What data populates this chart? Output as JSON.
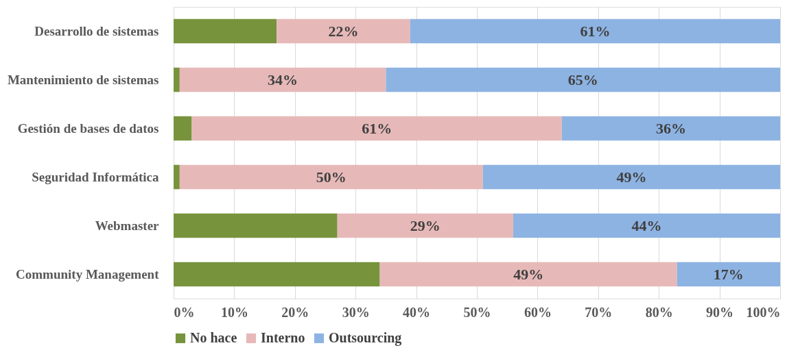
{
  "chart_data": {
    "type": "bar",
    "orientation": "horizontal",
    "stacked": true,
    "categories": [
      "Desarrollo de sistemas",
      "Mantenimiento de sistemas",
      "Gestión de bases de datos",
      "Seguridad Informática",
      "Webmaster",
      "Community Management"
    ],
    "series": [
      {
        "name": "No hace",
        "color": "#77933c",
        "values": [
          17,
          1,
          3,
          1,
          27,
          34
        ],
        "value_labels": [
          null,
          null,
          null,
          null,
          null,
          null
        ]
      },
      {
        "name": "Interno",
        "color": "#e6b9b8",
        "values": [
          22,
          34,
          61,
          50,
          29,
          49
        ],
        "value_labels": [
          "22%",
          "34%",
          "61%",
          "50%",
          "29%",
          "49%"
        ]
      },
      {
        "name": "Outsourcing",
        "color": "#8db3e2",
        "values": [
          61,
          65,
          36,
          49,
          44,
          17
        ],
        "value_labels": [
          "61%",
          "65%",
          "36%",
          "49%",
          "44%",
          "17%"
        ]
      }
    ],
    "xlim": [
      0,
      100
    ],
    "xticks": [
      {
        "value": 0,
        "label": "0%"
      },
      {
        "value": 10,
        "label": "10%"
      },
      {
        "value": 20,
        "label": "20%"
      },
      {
        "value": 30,
        "label": "30%"
      },
      {
        "value": 40,
        "label": "40%"
      },
      {
        "value": 50,
        "label": "50%"
      },
      {
        "value": 60,
        "label": "60%"
      },
      {
        "value": 70,
        "label": "70%"
      },
      {
        "value": 80,
        "label": "80%"
      },
      {
        "value": 90,
        "label": "90%"
      },
      {
        "value": 100,
        "label": "100%"
      }
    ],
    "grid": "x",
    "legend": "bottom"
  }
}
